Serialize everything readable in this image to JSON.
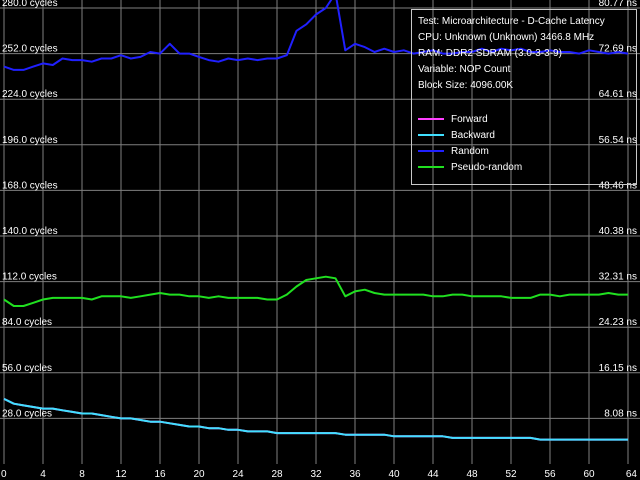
{
  "chart_data": {
    "type": "line",
    "x": [
      0,
      1,
      2,
      3,
      4,
      5,
      6,
      7,
      8,
      9,
      10,
      11,
      12,
      13,
      14,
      15,
      16,
      17,
      18,
      19,
      20,
      21,
      22,
      23,
      24,
      25,
      26,
      27,
      28,
      29,
      30,
      31,
      32,
      33,
      34,
      35,
      36,
      37,
      38,
      39,
      40,
      41,
      42,
      43,
      44,
      45,
      46,
      47,
      48,
      49,
      50,
      51,
      52,
      53,
      54,
      55,
      56,
      57,
      58,
      59,
      60,
      61,
      62,
      63,
      64
    ],
    "xticks": [
      "0",
      "4",
      "8",
      "12",
      "16",
      "20",
      "24",
      "28",
      "32",
      "36",
      "40",
      "44",
      "48",
      "52",
      "56",
      "60",
      "64"
    ],
    "xlim": [
      0,
      64
    ],
    "ylim_left": [
      0,
      280
    ],
    "ylim_right": [
      0,
      80.77
    ],
    "ytick_values": [
      28,
      56,
      84,
      112,
      140,
      168,
      196,
      224,
      252,
      280
    ],
    "yticks_left": [
      "28.0 cycles",
      "56.0 cycles",
      "84.0 cycles",
      "112.0 cycles",
      "140.0 cycles",
      "168.0 cycles",
      "196.0 cycles",
      "224.0 cycles",
      "252.0 cycles",
      "280.0 cycles"
    ],
    "yticks_right": [
      "8.08 ns",
      "16.15 ns",
      "24.23 ns",
      "32.31 ns",
      "40.38 ns",
      "48.46 ns",
      "56.54 ns",
      "64.61 ns",
      "72.69 ns",
      "80.77 ns"
    ],
    "grid": true,
    "legend_position": "top-right",
    "series": [
      {
        "name": "Forward",
        "color": "#ff40ff",
        "values": [
          40,
          37,
          36,
          35,
          34,
          34,
          33,
          32,
          31,
          31,
          30,
          29,
          28,
          28,
          27,
          26,
          26,
          25,
          24,
          23,
          23,
          22,
          22,
          21,
          21,
          20,
          20,
          20,
          19,
          19,
          19,
          19,
          19,
          19,
          19,
          18,
          18,
          18,
          18,
          18,
          17,
          17,
          17,
          17,
          17,
          17,
          16,
          16,
          16,
          16,
          16,
          16,
          16,
          16,
          16,
          15,
          15,
          15,
          15,
          15,
          15,
          15,
          15,
          15,
          15
        ]
      },
      {
        "name": "Backward",
        "color": "#40e0ff",
        "values": [
          40,
          37,
          36,
          35,
          34,
          34,
          33,
          32,
          31,
          31,
          30,
          29,
          28,
          28,
          27,
          26,
          26,
          25,
          24,
          23,
          23,
          22,
          22,
          21,
          21,
          20,
          20,
          20,
          19,
          19,
          19,
          19,
          19,
          19,
          19,
          18,
          18,
          18,
          18,
          18,
          17,
          17,
          17,
          17,
          17,
          17,
          16,
          16,
          16,
          16,
          16,
          16,
          16,
          16,
          16,
          15,
          15,
          15,
          15,
          15,
          15,
          15,
          15,
          15,
          15
        ]
      },
      {
        "name": "Random",
        "color": "#2020ff",
        "values": [
          244,
          242,
          242,
          244,
          246,
          245,
          249,
          248,
          248,
          247,
          249,
          249,
          251,
          249,
          250,
          253,
          252,
          258,
          252,
          252,
          250,
          248,
          247,
          249,
          248,
          249,
          248,
          249,
          249,
          251,
          266,
          270,
          276,
          280,
          289,
          254,
          258,
          256,
          253,
          255,
          253,
          254,
          252,
          253,
          254,
          252,
          252,
          253,
          253,
          255,
          253,
          255,
          254,
          255,
          253,
          253,
          254,
          253,
          253,
          252,
          254,
          253,
          252,
          253,
          252
        ]
      },
      {
        "name": "Pseudo-random",
        "color": "#20e020",
        "values": [
          101,
          97,
          97,
          99,
          101,
          102,
          102,
          102,
          102,
          101,
          103,
          103,
          103,
          102,
          103,
          104,
          105,
          104,
          104,
          103,
          103,
          102,
          103,
          102,
          102,
          102,
          102,
          101,
          101,
          104,
          109,
          113,
          114,
          115,
          114,
          103,
          106,
          107,
          105,
          104,
          104,
          104,
          104,
          104,
          103,
          103,
          104,
          104,
          103,
          103,
          103,
          103,
          102,
          102,
          102,
          104,
          104,
          103,
          104,
          104,
          104,
          104,
          105,
          104,
          104
        ]
      }
    ]
  },
  "info": {
    "test": "Test: Microarchitecture - D-Cache Latency",
    "cpu": "CPU: Unknown (Unknown) 3466.8 MHz",
    "ram": "RAM: DDR2 SDRAM (3.0-3-3-9)",
    "variable": "Variable: NOP Count",
    "block_size": "Block Size: 4096.00K"
  },
  "colors": {
    "background": "#000000",
    "grid": "#7f7f7f",
    "text": "#ffffff"
  }
}
